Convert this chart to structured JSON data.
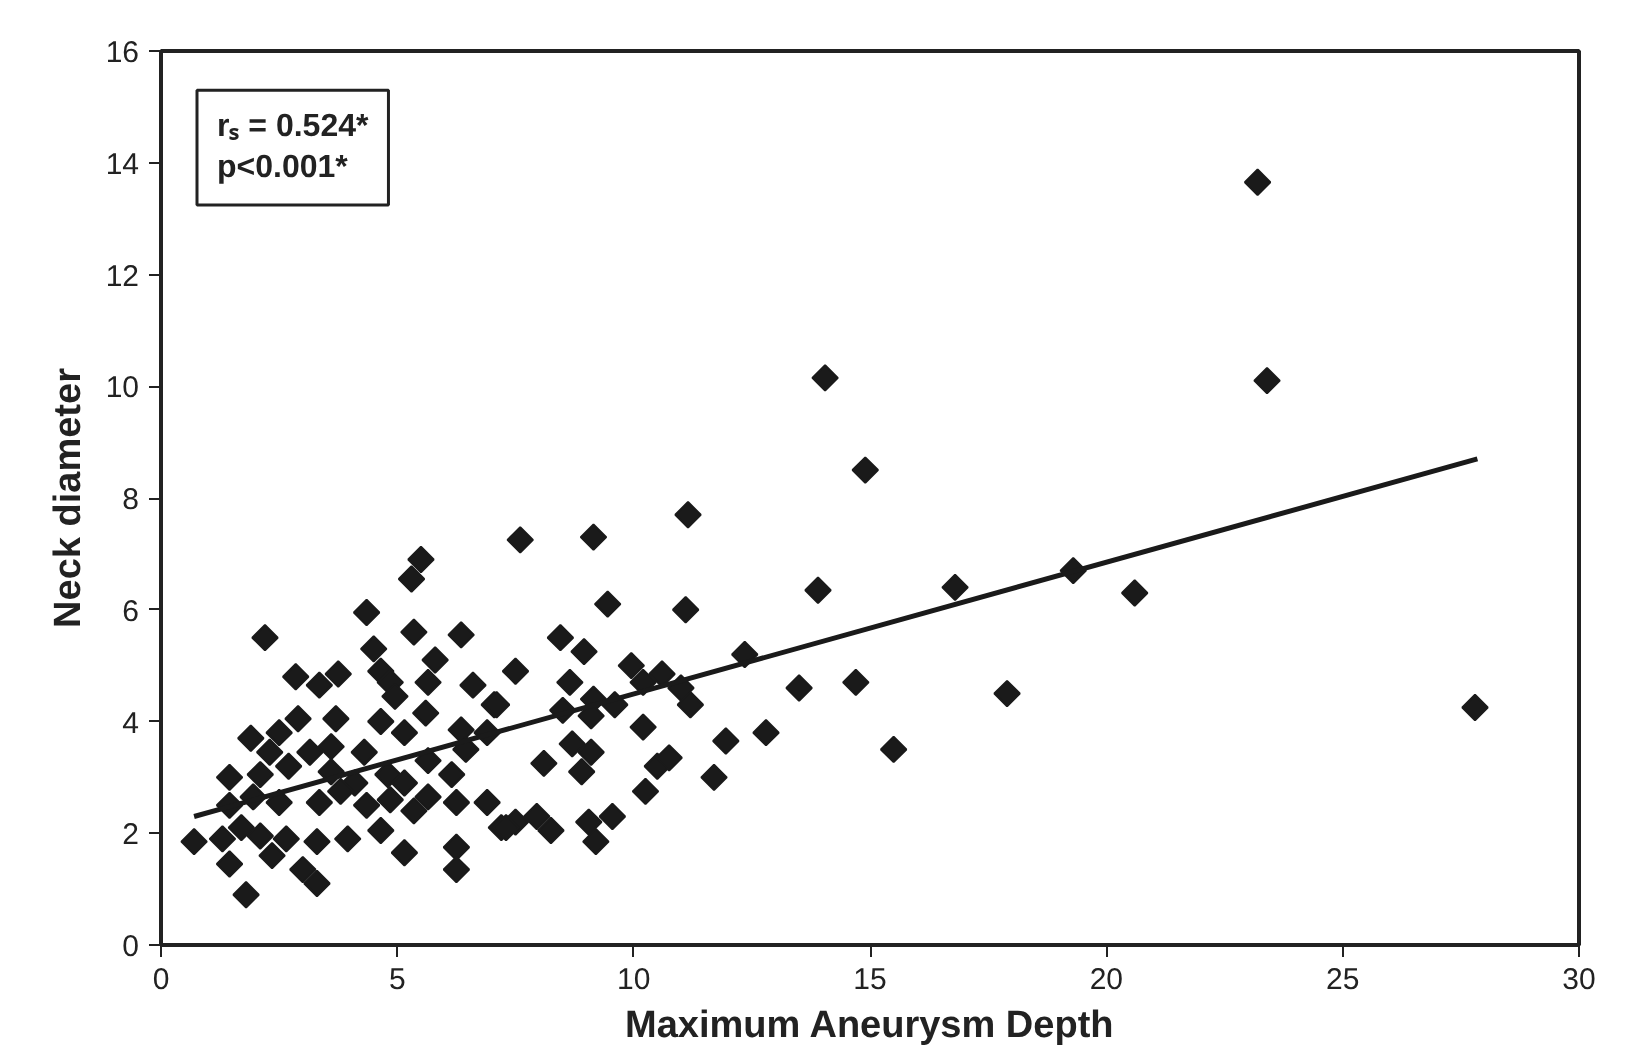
{
  "chart_data": {
    "type": "scatter",
    "xlabel": "Maximum Aneurysm Depth",
    "ylabel": "Neck diameter",
    "annotations": [
      "rₛ = 0.524*",
      "p<0.001*"
    ],
    "xlim": [
      0,
      30
    ],
    "xticks": [
      0,
      5,
      10,
      15,
      20,
      25,
      30
    ],
    "ylim": [
      0,
      16
    ],
    "yticks": [
      0,
      2,
      4,
      6,
      8,
      10,
      12,
      14,
      16
    ],
    "grid": false,
    "marker": "diamond",
    "series": [
      {
        "color": "#1a1a1a",
        "x": [
          23.2,
          23.4,
          14.9,
          14.05,
          16.8,
          19.3,
          20.6,
          14.7,
          15.5,
          17.9,
          27.8,
          11.15,
          7.6,
          9.15,
          9.45,
          11.1,
          13.9,
          8.45,
          8.95,
          7.5,
          8.65,
          9.95,
          10.6,
          10.2,
          7.05,
          8.5,
          9.15,
          9.1,
          9.6,
          11.0,
          11.2,
          12.35,
          13.5,
          6.9,
          10.2,
          11.95,
          12.8,
          8.7,
          9.1,
          8.1,
          8.9,
          10.5,
          10.75,
          11.7,
          10.25,
          6.9,
          7.2,
          7.5,
          7.95,
          8.25,
          9.05,
          9.55,
          9.2,
          5.5,
          5.3,
          4.35,
          2.2,
          5.35,
          6.35,
          4.5,
          2.85,
          3.35,
          3.75,
          4.65,
          4.85,
          5.8,
          5.65,
          6.6,
          4.95,
          7.1,
          2.9,
          3.7,
          5.6,
          1.9,
          2.5,
          4.65,
          5.15,
          6.35,
          2.3,
          3.15,
          3.6,
          4.3,
          5.65,
          6.45,
          1.45,
          2.1,
          2.7,
          3.6,
          4.1,
          4.8,
          5.15,
          6.15,
          1.45,
          1.95,
          2.5,
          3.35,
          3.8,
          4.35,
          4.85,
          5.35,
          5.65,
          6.25,
          0.7,
          1.3,
          1.7,
          2.1,
          2.65,
          3.3,
          3.95,
          4.65,
          5.15,
          6.25,
          7.3,
          1.45,
          2.35,
          3.0,
          3.3,
          6.25,
          1.8
        ],
        "values": [
          13.65,
          10.1,
          8.5,
          10.15,
          6.4,
          6.7,
          6.3,
          4.7,
          3.5,
          4.5,
          4.25,
          7.7,
          7.25,
          7.3,
          6.1,
          6.0,
          6.35,
          5.5,
          5.25,
          4.9,
          4.7,
          5.0,
          4.85,
          4.7,
          4.3,
          4.2,
          4.4,
          4.1,
          4.3,
          4.6,
          4.3,
          5.2,
          4.6,
          3.8,
          3.9,
          3.65,
          3.8,
          3.6,
          3.45,
          3.25,
          3.1,
          3.2,
          3.35,
          3.0,
          2.75,
          2.55,
          2.1,
          2.2,
          2.3,
          2.05,
          2.2,
          2.3,
          1.85,
          6.9,
          6.55,
          5.95,
          5.5,
          5.6,
          5.55,
          5.3,
          4.8,
          4.65,
          4.85,
          4.9,
          4.7,
          5.1,
          4.7,
          4.65,
          4.45,
          4.3,
          4.05,
          4.05,
          4.15,
          3.7,
          3.8,
          4.0,
          3.8,
          3.85,
          3.45,
          3.45,
          3.55,
          3.45,
          3.3,
          3.5,
          3.0,
          3.05,
          3.2,
          3.1,
          2.9,
          3.05,
          2.9,
          3.05,
          2.5,
          2.65,
          2.55,
          2.55,
          2.75,
          2.5,
          2.6,
          2.4,
          2.65,
          2.55,
          1.85,
          1.9,
          2.1,
          1.95,
          1.9,
          1.85,
          1.9,
          2.05,
          1.65,
          1.75,
          2.1,
          1.45,
          1.6,
          1.35,
          1.1,
          1.35,
          0.9
        ]
      },
      {
        "type": "line",
        "marker": "none",
        "color": "#1a1a1a",
        "x": [
          0.7,
          27.85
        ],
        "values": [
          2.3,
          8.7
        ]
      }
    ]
  }
}
